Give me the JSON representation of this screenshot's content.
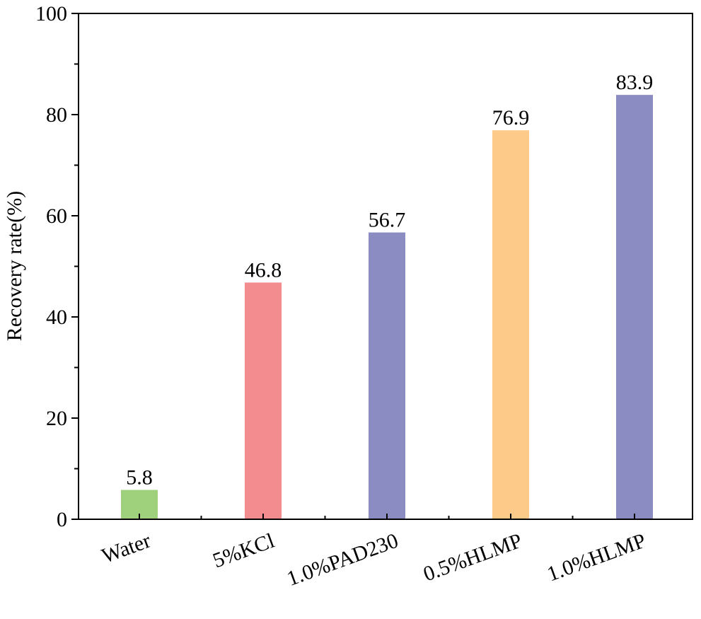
{
  "chart_data": {
    "type": "bar",
    "title": "",
    "xlabel": "",
    "ylabel": "Recovery rate(%)",
    "categories": [
      "Water",
      "5%KCl",
      "1.0%PAD230",
      "0.5%HLMP",
      "1.0%HLMP"
    ],
    "values": [
      5.8,
      46.8,
      56.7,
      76.9,
      83.9
    ],
    "data_labels": [
      "5.8",
      "46.8",
      "56.7",
      "76.9",
      "83.9"
    ],
    "colors": [
      "#9fd17d",
      "#f28c8f",
      "#8b8cc2",
      "#fdca8a",
      "#8b8cc2"
    ],
    "ylim": [
      0,
      100
    ],
    "yticks": [
      0,
      20,
      40,
      60,
      80,
      100
    ],
    "ytick_labels": [
      "0",
      "20",
      "40",
      "60",
      "80",
      "100"
    ],
    "grid": false,
    "legend": "none"
  }
}
